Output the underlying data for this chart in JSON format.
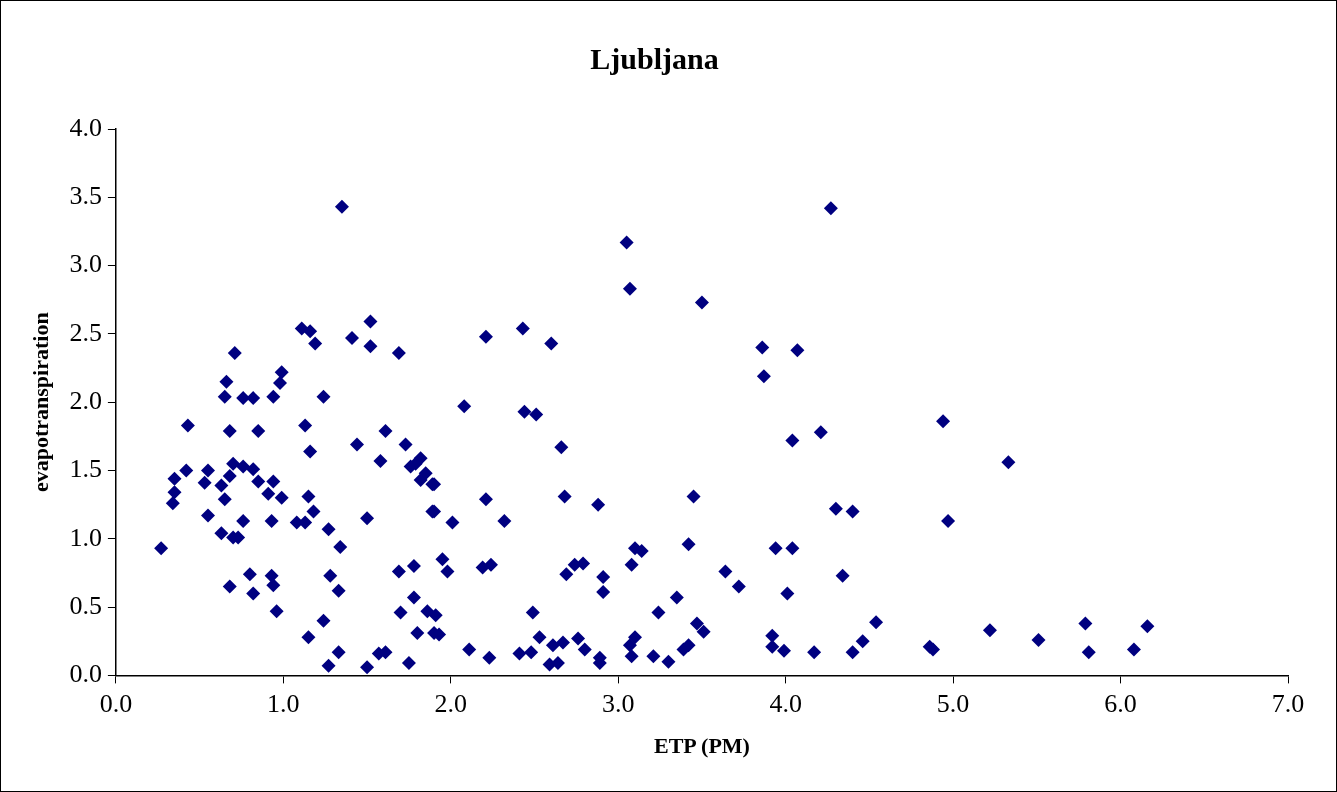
{
  "chart_data": {
    "type": "scatter",
    "title": "Ljubljana",
    "xlabel": "ETP (PM)",
    "ylabel": "evapotranspiration",
    "marker": "diamond",
    "grid": false,
    "xlim": [
      0,
      7
    ],
    "ylim": [
      0,
      4
    ],
    "xticks": [
      {
        "value": 0,
        "label": "0.0"
      },
      {
        "value": 1,
        "label": "1.0"
      },
      {
        "value": 2,
        "label": "2.0"
      },
      {
        "value": 3,
        "label": "3.0"
      },
      {
        "value": 4,
        "label": "4.0"
      },
      {
        "value": 5,
        "label": "5.0"
      },
      {
        "value": 6,
        "label": "6.0"
      },
      {
        "value": 7,
        "label": "7.0"
      }
    ],
    "yticks": [
      {
        "value": 0,
        "label": "0.0"
      },
      {
        "value": 0.5,
        "label": "0.5"
      },
      {
        "value": 1,
        "label": "1.0"
      },
      {
        "value": 1.5,
        "label": "1.5"
      },
      {
        "value": 2,
        "label": "2.0"
      },
      {
        "value": 2.5,
        "label": "2.5"
      },
      {
        "value": 3,
        "label": "3.0"
      },
      {
        "value": 3.5,
        "label": "3.5"
      },
      {
        "value": 4,
        "label": "4.0"
      }
    ],
    "series": [
      {
        "color": "#000080",
        "x": [
          1.35,
          1.11,
          1.16,
          1.19,
          1.52,
          1.41,
          1.52,
          1.69,
          0.71,
          0.99,
          0.98,
          0.66,
          0.65,
          0.76,
          0.82,
          0.94,
          1.24,
          0.43,
          0.68,
          0.85,
          1.13,
          1.61,
          1.44,
          1.73,
          1.16,
          1.58,
          1.82,
          1.79,
          1.76,
          0.42,
          0.55,
          0.7,
          0.76,
          0.82,
          0.68,
          0.35,
          0.53,
          0.63,
          0.85,
          0.94,
          1.85,
          1.82,
          1.89,
          0.35,
          0.34,
          0.65,
          0.91,
          0.99,
          1.15,
          1.18,
          1.89,
          0.55,
          0.76,
          0.93,
          1.08,
          1.13,
          1.5,
          1.27,
          0.63,
          0.7,
          0.73,
          1.34,
          0.27,
          1.69,
          1.78,
          0.8,
          0.93,
          1.28,
          0.68,
          0.82,
          0.94,
          1.33,
          1.78,
          0.96,
          1.7,
          1.86,
          1.91,
          1.24,
          1.8,
          1.9,
          1.15,
          1.33,
          1.57,
          1.61,
          1.27,
          1.5,
          1.75,
          3.05,
          3.07,
          3.5,
          2.21,
          2.43,
          2.6,
          3.86,
          3.87,
          2.08,
          2.44,
          2.51,
          2.66,
          1.9,
          2.21,
          2.68,
          2.88,
          3.45,
          1.9,
          2.01,
          2.32,
          3.42,
          3.1,
          3.14,
          3.08,
          1.95,
          1.98,
          2.19,
          2.24,
          2.69,
          2.74,
          2.79,
          2.91,
          2.91,
          3.64,
          3.72,
          3.35,
          3.24,
          2.49,
          1.93,
          2.11,
          2.23,
          2.41,
          2.48,
          2.53,
          2.59,
          2.61,
          2.67,
          2.64,
          2.76,
          2.8,
          2.89,
          2.89,
          3.07,
          3.1,
          3.08,
          3.21,
          3.3,
          3.39,
          3.42,
          3.47,
          3.51,
          4.27,
          4.07,
          4.04,
          4.21,
          4.94,
          5.33,
          4.3,
          4.4,
          4.97,
          3.94,
          4.04,
          4.34,
          4.01,
          4.54,
          5.22,
          5.51,
          5.79,
          5.81,
          6.16,
          6.08,
          3.92,
          3.92,
          3.99,
          4.17,
          4.4,
          4.46,
          4.88,
          4.86
        ],
        "values": [
          3.43,
          2.54,
          2.52,
          2.43,
          2.59,
          2.47,
          2.41,
          2.36,
          2.36,
          2.22,
          2.14,
          2.15,
          2.04,
          2.03,
          2.03,
          2.04,
          2.04,
          1.83,
          1.79,
          1.79,
          1.83,
          1.79,
          1.69,
          1.69,
          1.64,
          1.57,
          1.59,
          1.55,
          1.53,
          1.5,
          1.5,
          1.55,
          1.53,
          1.51,
          1.46,
          1.44,
          1.41,
          1.39,
          1.42,
          1.42,
          1.48,
          1.43,
          1.4,
          1.34,
          1.26,
          1.29,
          1.33,
          1.3,
          1.31,
          1.2,
          1.2,
          1.17,
          1.13,
          1.13,
          1.12,
          1.12,
          1.15,
          1.07,
          1.04,
          1.01,
          1.01,
          0.94,
          0.93,
          0.76,
          0.8,
          0.74,
          0.73,
          0.73,
          0.65,
          0.6,
          0.66,
          0.62,
          0.57,
          0.47,
          0.46,
          0.47,
          0.44,
          0.4,
          0.31,
          0.31,
          0.28,
          0.17,
          0.16,
          0.17,
          0.07,
          0.06,
          0.09,
          3.17,
          2.83,
          2.73,
          2.48,
          2.54,
          2.43,
          2.4,
          2.19,
          1.97,
          1.93,
          1.91,
          1.67,
          1.4,
          1.29,
          1.31,
          1.25,
          1.31,
          1.2,
          1.12,
          1.13,
          0.96,
          0.93,
          0.91,
          0.81,
          0.85,
          0.76,
          0.79,
          0.81,
          0.74,
          0.81,
          0.82,
          0.72,
          0.61,
          0.76,
          0.65,
          0.57,
          0.46,
          0.46,
          0.3,
          0.19,
          0.13,
          0.16,
          0.17,
          0.28,
          0.08,
          0.22,
          0.24,
          0.09,
          0.27,
          0.19,
          0.13,
          0.09,
          0.22,
          0.28,
          0.14,
          0.14,
          0.1,
          0.19,
          0.22,
          0.38,
          0.32,
          3.42,
          2.38,
          1.72,
          1.78,
          1.86,
          1.56,
          1.22,
          1.2,
          1.13,
          0.93,
          0.93,
          0.73,
          0.6,
          0.39,
          0.33,
          0.26,
          0.38,
          0.17,
          0.36,
          0.19,
          0.29,
          0.21,
          0.18,
          0.17,
          0.17,
          0.25,
          0.19,
          0.21
        ]
      }
    ]
  }
}
